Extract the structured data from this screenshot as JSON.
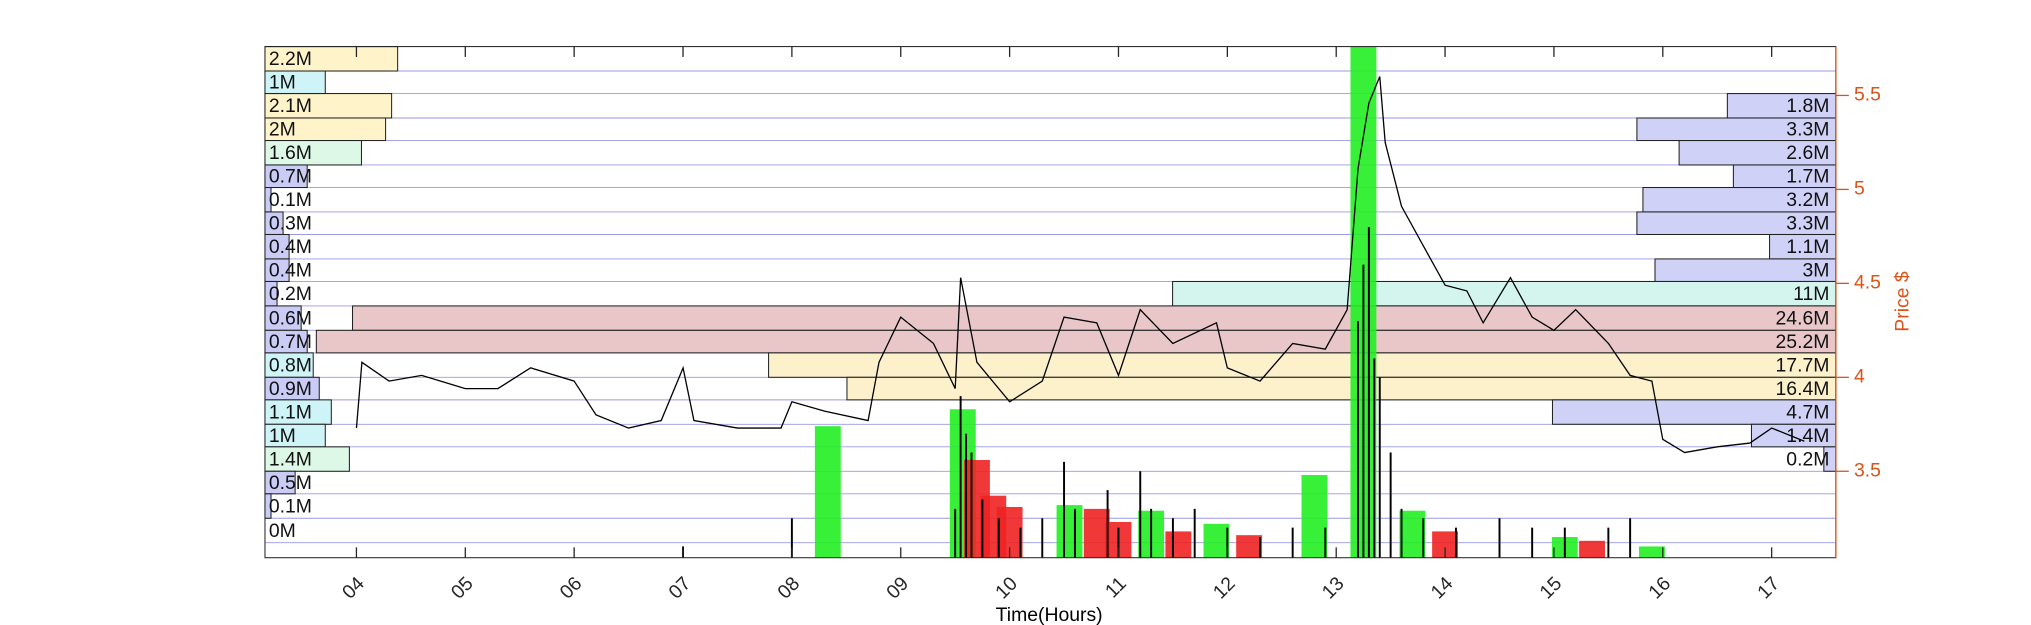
{
  "chart_data": {
    "type": "line",
    "xlabel": "Time(Hours)",
    "y2label": "Price $",
    "xlim": [
      3.16,
      17.59
    ],
    "xticks": [
      {
        "value": 4,
        "label": "04"
      },
      {
        "value": 5,
        "label": "05"
      },
      {
        "value": 6,
        "label": "06"
      },
      {
        "value": 7,
        "label": "07"
      },
      {
        "value": 8,
        "label": "08"
      },
      {
        "value": 9,
        "label": "09"
      },
      10,
      11,
      12,
      13,
      14,
      15,
      16,
      17
    ],
    "y2lim": [
      3.04,
      5.76
    ],
    "y2ticks": [
      3.5,
      4,
      4.5,
      5,
      5.5
    ],
    "grid": true,
    "price_bins": [
      5.76,
      5.63,
      5.51,
      5.38,
      5.26,
      5.13,
      5.01,
      4.88,
      4.76,
      4.63,
      4.51,
      4.38,
      4.25,
      4.13,
      4.0,
      3.88,
      3.75,
      3.63,
      3.5,
      3.38,
      3.25,
      3.12
    ],
    "volume_profile_left": {
      "values": [
        2.2,
        1,
        2.1,
        2,
        1.6,
        0.7,
        0.1,
        0.3,
        0.4,
        0.4,
        0.2,
        0.6,
        0.7,
        0.8,
        0.9,
        1.1,
        1,
        1.4,
        0.5,
        0.1,
        0
      ],
      "value_labels": [
        "2.2M",
        "1M",
        "2.1M",
        "2M",
        "1.6M",
        "0.7M",
        "0.1M",
        "0.3M",
        "0.4M",
        "0.4M",
        "0.2M",
        "0.6M",
        "0.7M",
        "0.8M",
        "0.9M",
        "1.1M",
        "1M",
        "1.4M",
        "0.5M",
        "0.1M",
        "0M"
      ],
      "colors": [
        "#fff2c4",
        "#c9f3f7",
        "#fff2c4",
        "#fff2c4",
        "#d9f7e3",
        "#c4c6f5",
        "#c4c6f5",
        "#c4c6f5",
        "#c4c6f5",
        "#c4c6f5",
        "#c4c6f5",
        "#c4c6f5",
        "#c4c6f5",
        "#c9f3f7",
        "#c4c6f5",
        "#c9f3f7",
        "#c9f3f7",
        "#d9f7e3",
        "#c4c6f5",
        "#c4c6f5",
        "#c4c6f5"
      ]
    },
    "volume_profile_right": {
      "values": [
        null,
        null,
        1.8,
        3.3,
        2.6,
        1.7,
        3.2,
        3.3,
        1.1,
        3,
        11,
        24.6,
        25.2,
        17.7,
        16.4,
        4.7,
        1.4,
        0.2,
        null,
        null,
        null
      ],
      "value_labels": [
        null,
        null,
        "1.8M",
        "3.3M",
        "2.6M",
        "1.7M",
        "3.2M",
        "3.3M",
        "1.1M",
        "3M",
        "11M",
        "24.6M",
        "25.2M",
        "17.7M",
        "16.4M",
        "4.7M",
        "1.4M",
        "0.2M",
        null,
        null,
        null
      ],
      "colors": [
        null,
        null,
        "#c4c6f5",
        "#c4c6f5",
        "#c4c6f5",
        "#c4c6f5",
        "#c4c6f5",
        "#c4c6f5",
        "#c4c6f5",
        "#c4c6f5",
        "#c9f3e8",
        "#e3b9bb",
        "#e3b9bb",
        "#fbeebe",
        "#fbeebe",
        "#c4c6f5",
        "#c4c6f5",
        "#c4c6f5",
        null,
        null,
        null
      ]
    },
    "volume_bars": {
      "x": [
        8.33,
        9.57,
        9.7,
        9.85,
        10.0,
        10.55,
        10.8,
        11.0,
        11.3,
        11.55,
        11.9,
        12.2,
        12.8,
        13.25,
        13.7,
        14.0,
        15.1,
        15.35,
        15.9
      ],
      "values": [
        3.74,
        3.83,
        3.56,
        3.37,
        3.31,
        3.32,
        3.3,
        3.23,
        3.29,
        3.18,
        3.22,
        3.16,
        3.48,
        5.76,
        3.29,
        3.18,
        3.15,
        3.13,
        3.1
      ],
      "colors": [
        "#22ee22",
        "#22ee22",
        "#ee2222",
        "#ee2222",
        "#ee2222",
        "#22ee22",
        "#ee2222",
        "#ee2222",
        "#22ee22",
        "#ee2222",
        "#22ee22",
        "#ee2222",
        "#22ee22",
        "#22ee22",
        "#22ee22",
        "#ee2222",
        "#22ee22",
        "#ee2222",
        "#22ee22"
      ]
    },
    "volume_spikes": {
      "x": [
        7.0,
        8.0,
        9.5,
        9.55,
        9.6,
        9.65,
        9.75,
        9.9,
        10.1,
        10.3,
        10.5,
        10.6,
        10.9,
        11.0,
        11.2,
        11.3,
        11.5,
        11.7,
        12.0,
        12.3,
        12.6,
        12.9,
        13.2,
        13.25,
        13.3,
        13.35,
        13.4,
        13.5,
        13.6,
        13.8,
        14.1,
        14.5,
        14.8,
        15.1,
        15.5,
        15.7
      ],
      "values": [
        3.1,
        3.25,
        3.3,
        3.9,
        3.7,
        3.6,
        3.35,
        3.25,
        3.2,
        3.25,
        3.55,
        3.3,
        3.4,
        3.2,
        3.5,
        3.3,
        3.25,
        3.3,
        3.2,
        3.15,
        3.2,
        3.2,
        4.3,
        4.6,
        4.8,
        4.1,
        4.0,
        3.6,
        3.3,
        3.25,
        3.2,
        3.25,
        3.2,
        3.2,
        3.2,
        3.25
      ]
    },
    "price": {
      "color": "#000000",
      "axis": "y2",
      "x": [
        4.0,
        4.05,
        4.3,
        4.6,
        5.0,
        5.3,
        5.6,
        6.0,
        6.2,
        6.5,
        6.8,
        7.0,
        7.1,
        7.5,
        7.9,
        8.0,
        8.3,
        8.7,
        8.8,
        9.0,
        9.3,
        9.5,
        9.55,
        9.7,
        10.0,
        10.3,
        10.5,
        10.8,
        11.0,
        11.2,
        11.5,
        11.9,
        12.0,
        12.3,
        12.6,
        12.9,
        13.1,
        13.2,
        13.3,
        13.4,
        13.45,
        13.6,
        13.8,
        14.0,
        14.2,
        14.35,
        14.6,
        14.8,
        15.0,
        15.2,
        15.5,
        15.7,
        15.9,
        16.0,
        16.2,
        16.5,
        16.8,
        17.0,
        17.3
      ],
      "values": [
        3.73,
        4.08,
        3.98,
        4.01,
        3.94,
        3.94,
        4.05,
        3.98,
        3.8,
        3.73,
        3.77,
        4.05,
        3.77,
        3.73,
        3.73,
        3.87,
        3.82,
        3.77,
        4.08,
        4.32,
        4.18,
        3.94,
        4.53,
        4.08,
        3.87,
        3.98,
        4.32,
        4.29,
        4.01,
        4.36,
        4.18,
        4.29,
        4.05,
        3.98,
        4.18,
        4.15,
        4.36,
        5.11,
        5.46,
        5.6,
        5.25,
        4.91,
        4.7,
        4.49,
        4.46,
        4.29,
        4.53,
        4.32,
        4.25,
        4.36,
        4.18,
        4.01,
        3.98,
        3.67,
        3.6,
        3.63,
        3.65,
        3.73,
        3.66
      ]
    }
  }
}
